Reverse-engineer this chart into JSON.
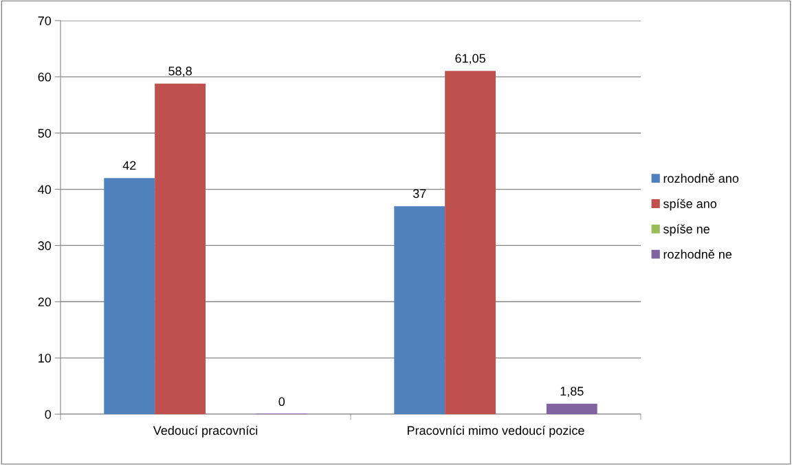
{
  "chart_data": {
    "type": "bar",
    "categories": [
      "Vedoucí pracovníci",
      "Pracovníci mimo vedoucí pozice"
    ],
    "series": [
      {
        "name": "rozhodně ano",
        "color": "#4f81bd",
        "values": [
          42,
          37
        ],
        "value_labels": [
          "42",
          "37"
        ]
      },
      {
        "name": "spíše ano",
        "color": "#c0504d",
        "values": [
          58.8,
          61.05
        ],
        "value_labels": [
          "58,8",
          "61,05"
        ]
      },
      {
        "name": "spíše ne",
        "color": "#9bbb59",
        "values": [
          null,
          null
        ],
        "value_labels": [
          null,
          null
        ]
      },
      {
        "name": "rozhodně ne",
        "color": "#8064a2",
        "values": [
          0,
          1.85
        ],
        "value_labels": [
          "0",
          "1,85"
        ]
      }
    ],
    "ylim": [
      0,
      70
    ],
    "yticks": [
      0,
      10,
      20,
      30,
      40,
      50,
      60,
      70
    ],
    "grid": "y",
    "legend": "right"
  }
}
